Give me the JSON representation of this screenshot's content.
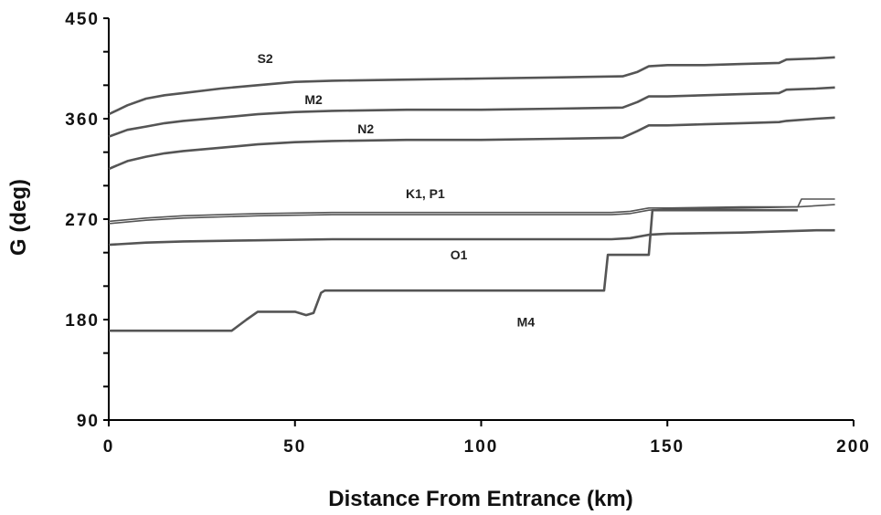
{
  "chart_data": {
    "type": "line",
    "title": "",
    "xlabel": "Distance From Entrance (km)",
    "ylabel": "G (deg)",
    "xlim": [
      0,
      200
    ],
    "ylim": [
      90,
      450
    ],
    "xticks": [
      0,
      50,
      100,
      150,
      200
    ],
    "yticks": [
      90,
      180,
      270,
      360,
      450
    ],
    "grid": false,
    "legend": "none",
    "line_color": "#555555",
    "series": [
      {
        "name": "S2",
        "x": [
          0,
          5,
          10,
          15,
          20,
          30,
          40,
          50,
          60,
          80,
          100,
          120,
          138,
          142,
          145,
          150,
          160,
          170,
          180,
          182,
          190,
          195
        ],
        "values": [
          364,
          372,
          378,
          381,
          383,
          387,
          390,
          393,
          394,
          395,
          396,
          397,
          398,
          402,
          407,
          408,
          408,
          409,
          410,
          413,
          414,
          415
        ]
      },
      {
        "name": "M2",
        "x": [
          0,
          5,
          10,
          15,
          20,
          30,
          40,
          50,
          60,
          80,
          100,
          120,
          138,
          142,
          145,
          150,
          160,
          170,
          180,
          182,
          190,
          195
        ],
        "values": [
          344,
          350,
          353,
          356,
          358,
          361,
          364,
          366,
          367,
          368,
          368,
          369,
          370,
          375,
          380,
          380,
          381,
          382,
          383,
          386,
          387,
          388
        ]
      },
      {
        "name": "N2",
        "x": [
          0,
          5,
          10,
          15,
          20,
          30,
          40,
          50,
          60,
          80,
          100,
          120,
          138,
          142,
          145,
          150,
          160,
          170,
          180,
          182,
          190,
          195
        ],
        "values": [
          315,
          322,
          326,
          329,
          331,
          334,
          337,
          339,
          340,
          341,
          341,
          342,
          343,
          349,
          354,
          354,
          355,
          356,
          357,
          358,
          360,
          361
        ]
      },
      {
        "name": "K1",
        "x": [
          0,
          10,
          20,
          40,
          60,
          80,
          100,
          120,
          135,
          140,
          145,
          150,
          170,
          185,
          186,
          195
        ],
        "values": [
          268,
          271,
          273,
          275,
          276,
          276,
          276,
          276,
          276,
          277,
          280,
          280,
          281,
          281,
          288,
          288
        ]
      },
      {
        "name": "P1",
        "x": [
          0,
          10,
          20,
          40,
          60,
          80,
          100,
          120,
          135,
          140,
          145,
          150,
          170,
          185,
          195
        ],
        "values": [
          266,
          269,
          271,
          273,
          274,
          274,
          274,
          274,
          274,
          275,
          278,
          279,
          280,
          281,
          283
        ]
      },
      {
        "name": "O1",
        "x": [
          0,
          10,
          20,
          40,
          60,
          80,
          100,
          120,
          135,
          140,
          145,
          150,
          170,
          190,
          195
        ],
        "values": [
          247,
          249,
          250,
          251,
          252,
          252,
          252,
          252,
          252,
          253,
          256,
          257,
          258,
          260,
          260
        ]
      },
      {
        "name": "M4",
        "x": [
          0,
          10,
          20,
          30,
          33,
          37,
          40,
          45,
          50,
          53,
          55,
          57,
          58,
          70,
          90,
          110,
          120,
          130,
          133,
          134,
          140,
          145,
          146,
          150,
          160,
          170,
          185
        ],
        "values": [
          170,
          170,
          170,
          170,
          170,
          180,
          187,
          187,
          187,
          184,
          186,
          204,
          206,
          206,
          206,
          206,
          206,
          206,
          206,
          238,
          238,
          238,
          278,
          278,
          278,
          278,
          278
        ]
      }
    ],
    "labels": [
      {
        "text": "S2",
        "x": 42,
        "y": 410
      },
      {
        "text": "M2",
        "x": 55,
        "y": 373
      },
      {
        "text": "N2",
        "x": 69,
        "y": 347
      },
      {
        "text": "K1, P1",
        "x": 85,
        "y": 289
      },
      {
        "text": "O1",
        "x": 94,
        "y": 234
      },
      {
        "text": "M4",
        "x": 112,
        "y": 174
      }
    ]
  }
}
